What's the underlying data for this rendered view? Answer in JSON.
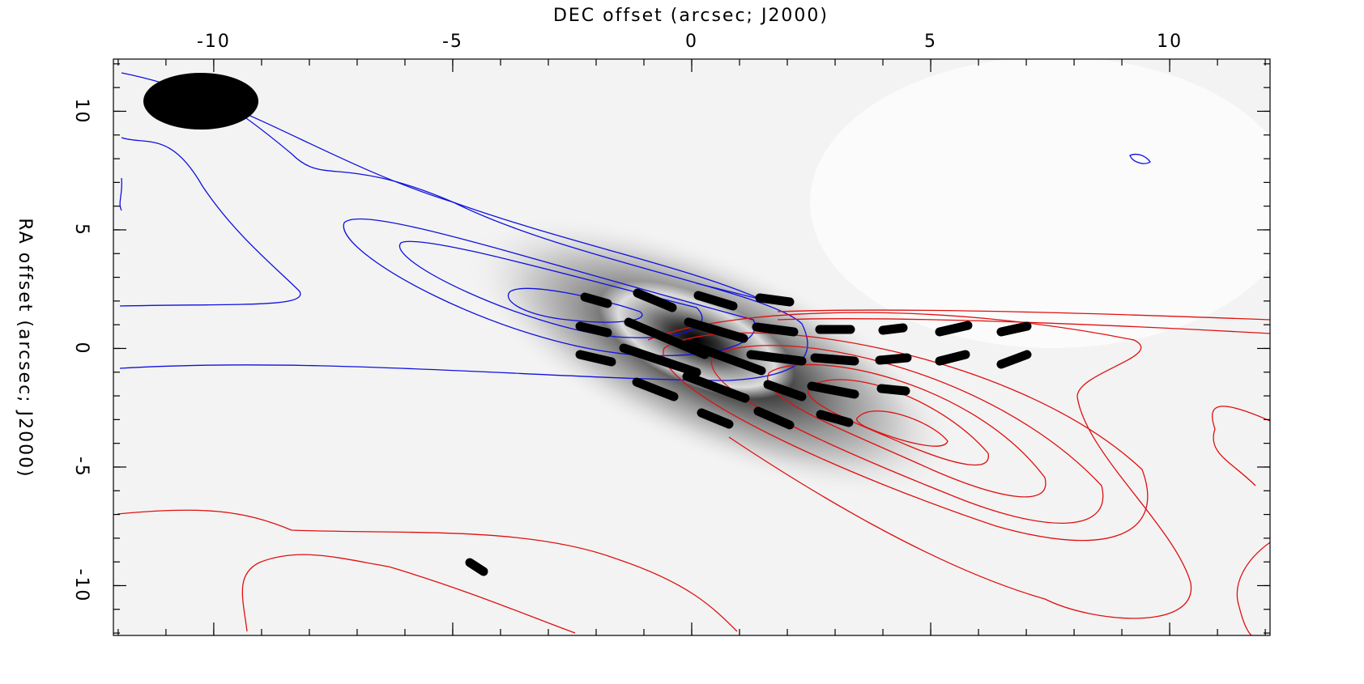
{
  "chart_data": {
    "type": "contour",
    "x_label": "DEC offset (arcsec; J2000)",
    "y_label": "RA offset (arcsec; J2000)",
    "xlim": [
      -12.1,
      12.1
    ],
    "xticks": [
      -10,
      -5,
      0,
      5,
      10
    ],
    "ylim": [
      -12.1,
      12.2
    ],
    "yticks": [
      -10,
      -5,
      0,
      5,
      10
    ]
  }
}
